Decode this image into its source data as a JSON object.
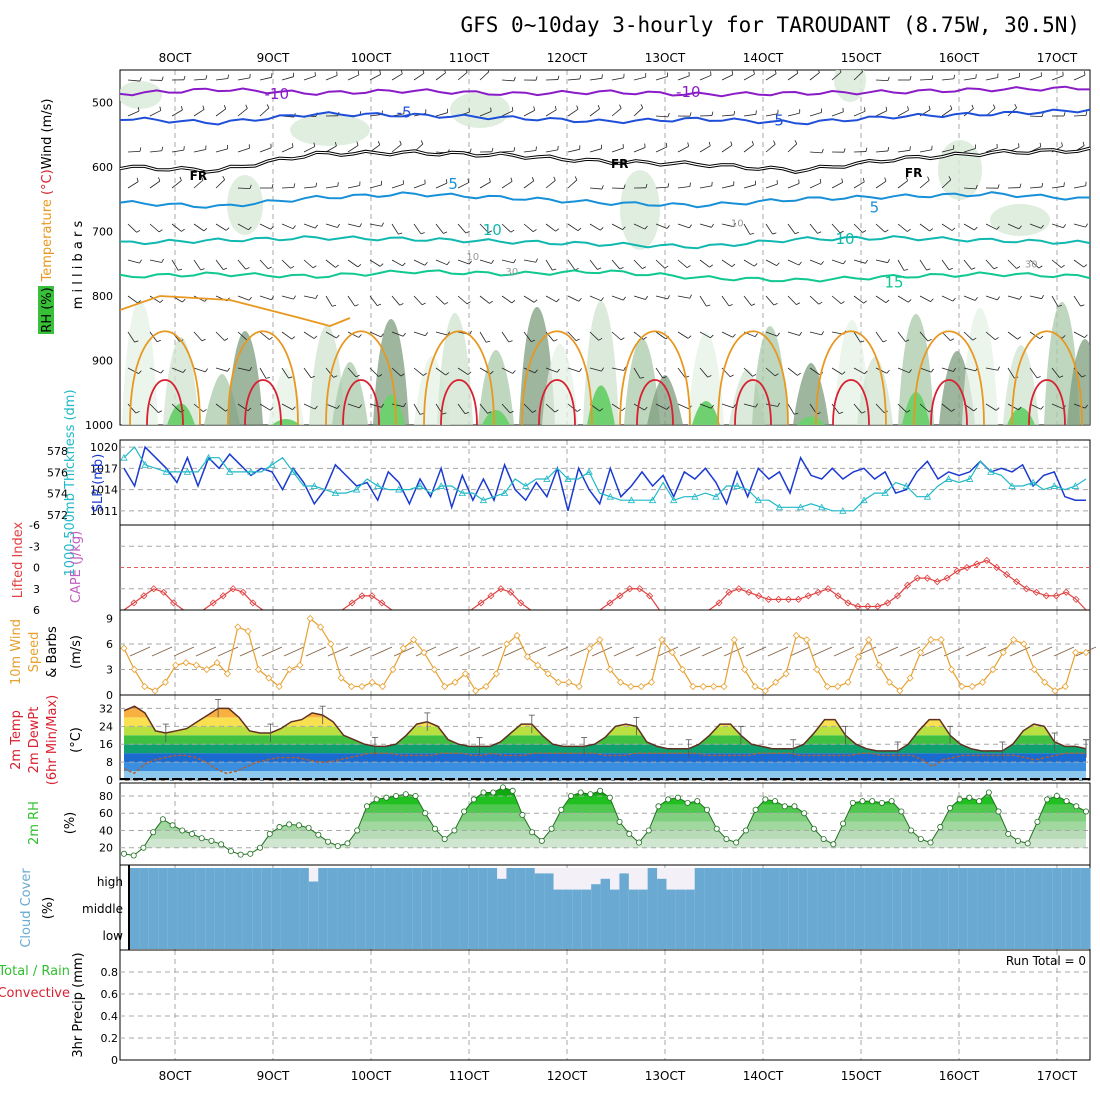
{
  "title": "GFS 0~10day 3-hourly for TAROUDANT (8.75W, 30.5N)",
  "colors": {
    "purple": "#8a1cc8",
    "blue": "#1f4fd8",
    "black": "#000000",
    "lightblue": "#1890d8",
    "teal": "#10b8b0",
    "green": "#10c890",
    "orange": "#e89820",
    "red": "#d82030",
    "slp": "#1a3ad0",
    "thickness": "#20b8c8",
    "cape": "#e04040",
    "wind": "#e8a030",
    "barb": "#806040",
    "rh": "#30c030",
    "cloud": "#6aaad2",
    "cloudClear": "#f4f0f8"
  },
  "chart_data": [
    {
      "name": "Upper air cross-section",
      "type": "line",
      "x_ticks": [
        "8OCT",
        "9OCT",
        "10OCT",
        "11OCT",
        "12OCT",
        "13OCT",
        "14OCT",
        "15OCT",
        "16OCT",
        "17OCT"
      ],
      "xlim": [
        -6,
        93
      ],
      "ylim": [
        1000,
        450
      ],
      "y_ticks": [
        500,
        600,
        700,
        800,
        900,
        1000
      ],
      "ylabel": "m i l l i b a r s",
      "legend_labels": {
        "rh": "RH (%)",
        "temp": "Temperature (°C)",
        "wind": "Wind (m/s)"
      },
      "isotherms": [
        {
          "value": -10,
          "color": "purple",
          "values": [
            487,
            480,
            486,
            482,
            487,
            484,
            488,
            486,
            484,
            480,
            478
          ]
        },
        {
          "value": -5,
          "color": "blue",
          "values": [
            525,
            532,
            518,
            520,
            524,
            530,
            526,
            532,
            522,
            518,
            512
          ]
        },
        {
          "value": 0,
          "color": "black",
          "values": [
            600,
            606,
            580,
            578,
            582,
            592,
            596,
            606,
            588,
            578,
            574
          ]
        },
        {
          "value": 5,
          "color": "lightblue",
          "values": [
            655,
            662,
            648,
            642,
            648,
            656,
            660,
            650,
            646,
            642,
            650
          ]
        },
        {
          "value": 10,
          "color": "teal",
          "values": [
            718,
            714,
            710,
            712,
            716,
            720,
            724,
            712,
            710,
            714,
            718
          ]
        },
        {
          "value": 15,
          "color": "green",
          "values": [
            770,
            766,
            770,
            762,
            766,
            762,
            772,
            776,
            770,
            766,
            770
          ]
        }
      ],
      "contour_labels": [
        {
          "text": "-10",
          "x": 10,
          "p": 487,
          "color": "purple"
        },
        {
          "text": "-5",
          "x": 23,
          "p": 516,
          "color": "blue"
        },
        {
          "text": "FR",
          "x": 2,
          "p": 613,
          "color": "black"
        },
        {
          "text": "FR",
          "x": 45,
          "p": 594,
          "color": "black"
        },
        {
          "text": "5",
          "x": 28,
          "p": 627,
          "color": "lightblue"
        },
        {
          "text": "10",
          "x": 32,
          "p": 698,
          "color": "teal"
        },
        {
          "text": "-10",
          "x": 52,
          "p": 484,
          "color": "purple"
        },
        {
          "text": "-5",
          "x": 61,
          "p": 528,
          "color": "blue"
        },
        {
          "text": "FR",
          "x": 75,
          "p": 608,
          "color": "black"
        },
        {
          "text": "5",
          "x": 71,
          "p": 663,
          "color": "lightblue"
        },
        {
          "text": "10",
          "x": 68,
          "p": 712,
          "color": "teal"
        },
        {
          "text": "15",
          "x": 73,
          "p": 779,
          "color": "green"
        },
        {
          "text": "10",
          "x": 57,
          "p": 685,
          "color": "gray"
        },
        {
          "text": "10",
          "x": 30,
          "p": 737,
          "color": "gray"
        },
        {
          "text": "30",
          "x": 34,
          "p": 760,
          "color": "gray"
        },
        {
          "text": "30",
          "x": 87,
          "p": 748,
          "color": "gray"
        }
      ]
    },
    {
      "name": "Sea level pressure and thickness",
      "type": "line",
      "ylabel_left": "1000-500mb Thickness (dm)",
      "ylabel_right": "SLP (mb)",
      "left_ticks": [
        578,
        576,
        574,
        572
      ],
      "right_ticks": [
        1020,
        1017,
        1014,
        1011
      ],
      "ylim": [
        1009,
        1021
      ],
      "slp": [
        1017,
        1014.5,
        1020,
        1018.5,
        1017,
        1015,
        1018.5,
        1014.5,
        1018.5,
        1017,
        1019,
        1017.5,
        1016,
        1017,
        1016.5,
        1014,
        1017,
        1015,
        1012,
        1014,
        1017.5,
        1016,
        1014.5,
        1015,
        1012.5,
        1016.5,
        1015,
        1012,
        1015.5,
        1013,
        1017,
        1011.5,
        1016,
        1012.5,
        1015.5,
        1012.5,
        1017.5,
        1014,
        1012.5,
        1015,
        1013,
        1017,
        1011,
        1017,
        1014,
        1012,
        1017,
        1013,
        1014.5,
        1016.5,
        1014.5,
        1016,
        1013,
        1016.5,
        1015.5,
        1017,
        1015,
        1012,
        1016.5,
        1013,
        1017,
        1015.5,
        1016.5,
        1013.5,
        1018.5,
        1016,
        1015.5,
        1017,
        1015.5,
        1016.5,
        1017,
        1015.5,
        1016.5,
        1013.5,
        1014,
        1016.5,
        1018,
        1015.5,
        1016.5,
        1016,
        1016.5,
        1018,
        1016.5,
        1017,
        1016.5,
        1017.5,
        1014.5,
        1016,
        1016.5,
        1013,
        1012.5,
        1012.5
      ],
      "thickness": [
        1018.5,
        1020,
        1017.5,
        1017,
        1016.5,
        1016.5,
        1016.5,
        1016.5,
        1018.5,
        1018.5,
        1016.5,
        1016.5,
        1016.5,
        1016.5,
        1017.5,
        1018.5,
        1016.5,
        1014.5,
        1014.5,
        1014,
        1013.5,
        1013.5,
        1014,
        1015.5,
        1014.5,
        1014,
        1014,
        1014,
        1014.5,
        1013.5,
        1014.5,
        1014.5,
        1013.5,
        1013.5,
        1012.5,
        1013,
        1013.5,
        1015.5,
        1014.5,
        1015.5,
        1015.5,
        1017,
        1015.5,
        1015.5,
        1016.5,
        1013.5,
        1013,
        1012.5,
        1012.5,
        1012.5,
        1012.5,
        1015,
        1012.5,
        1013,
        1013,
        1013.5,
        1013,
        1014.5,
        1014.5,
        1014,
        1012.5,
        1012.5,
        1011.5,
        1011.5,
        1011.5,
        1012,
        1011.5,
        1011,
        1011,
        1011,
        1012.5,
        1013.5,
        1013.5,
        1015,
        1014.5,
        1013,
        1013,
        1014.5,
        1015.5,
        1015,
        1015.5,
        1018,
        1016.5,
        1016,
        1014.5,
        1014.5,
        1015,
        1014,
        1014.5,
        1014,
        1014.5,
        1015.5
      ]
    },
    {
      "name": "CAPE / Lifted Index",
      "type": "line",
      "ylabel_left": "Lifted Index",
      "ylabel_right": "CAPE (J/kg)",
      "y_ticks": [
        "-6",
        "-3",
        "0",
        "3",
        "6"
      ],
      "ylim": [
        -6,
        6
      ],
      "zero_line": 0,
      "lifted_index": [
        6,
        5,
        4,
        3,
        3.5,
        5,
        6,
        6,
        6,
        5,
        4,
        3,
        3.5,
        5,
        6,
        6,
        6,
        6,
        6,
        6,
        6,
        6,
        6,
        5,
        4,
        4,
        5,
        6,
        6,
        6,
        6,
        6,
        6,
        6,
        6,
        6,
        5,
        4,
        3,
        3.5,
        5,
        6,
        6,
        6,
        6,
        6,
        6,
        6,
        6,
        5,
        4,
        3,
        3,
        4,
        6,
        6,
        6,
        6,
        6,
        6,
        5,
        3.5,
        3,
        3.5,
        4,
        4.5,
        4.5,
        4.5,
        4.5,
        4,
        3.5,
        3,
        4,
        5,
        5.5,
        5.5,
        5.5,
        5,
        4,
        2.5,
        1.5,
        1.5,
        2,
        1.5,
        0.5,
        0,
        -0.5,
        -1,
        0,
        1,
        2,
        3,
        3.5,
        4,
        4,
        3.5,
        4.5,
        6
      ]
    },
    {
      "name": "10m Wind Speed & Barbs",
      "type": "line",
      "ylabel": "10m Wind Speed & Barbs",
      "yunits": "(m/s)",
      "y_ticks": [
        "0",
        "3",
        "6",
        "9"
      ],
      "ylim": [
        0,
        10
      ],
      "wind_speed": [
        5.5,
        3,
        1,
        0.5,
        1.5,
        3.5,
        3.8,
        3.5,
        3,
        3.8,
        2.5,
        8,
        7.5,
        3,
        2,
        1,
        3,
        3.5,
        9,
        8,
        6,
        2,
        1,
        1,
        1.5,
        1,
        3,
        5.5,
        6.5,
        5,
        3,
        1,
        1.5,
        2.5,
        0.5,
        1,
        2.5,
        6,
        7,
        4.5,
        3.5,
        2.5,
        1.5,
        1.5,
        1,
        5.5,
        6.5,
        3,
        1.5,
        1,
        1,
        1.5,
        6.5,
        5,
        3,
        1,
        1,
        1,
        1,
        6.5,
        3,
        1,
        0.5,
        1.5,
        2.5,
        7,
        6.5,
        3,
        1,
        1,
        1.5,
        4.5,
        6.5,
        3.5,
        1.5,
        0.5,
        2,
        5,
        6.5,
        6.5,
        3,
        1,
        1,
        1.5,
        3,
        5,
        6.5,
        6,
        3,
        1.5,
        0.5,
        1,
        5,
        5
      ]
    },
    {
      "name": "2m Temp, 2m DewPt, 6hr Min/Max",
      "type": "area",
      "ylabel": "2m Temp 2m DewPt (6hr Min/Max)",
      "yunits": "(°C)",
      "y_ticks": [
        0,
        8,
        16,
        24,
        32
      ],
      "ylim": [
        0,
        38
      ],
      "temp": [
        31,
        33,
        30,
        22,
        21,
        22,
        23,
        26,
        29,
        32,
        32,
        28,
        22,
        21,
        21,
        23,
        26,
        27,
        30,
        29,
        26,
        20,
        18,
        16,
        15,
        15,
        16,
        20,
        25,
        26,
        24,
        18,
        16,
        15,
        15,
        15,
        17,
        21,
        25,
        25,
        20,
        16,
        15,
        15,
        15,
        16,
        19,
        24,
        25,
        24,
        17,
        15,
        14,
        14,
        14,
        16,
        20,
        25,
        25,
        20,
        16,
        15,
        14,
        14,
        14,
        16,
        21,
        27,
        27,
        20,
        16,
        14,
        13,
        13,
        13,
        16,
        22,
        27,
        27,
        20,
        16,
        14,
        13,
        13,
        13,
        16,
        22,
        25,
        24,
        17,
        15,
        15,
        14
      ],
      "dewpoint": [
        5,
        3,
        7,
        9,
        10,
        11,
        11,
        10,
        8,
        5,
        3,
        4,
        6,
        8,
        9,
        10,
        10,
        10,
        9,
        8,
        8,
        9,
        10,
        11,
        12,
        12,
        12,
        11,
        11,
        11,
        11,
        12,
        12,
        12,
        11,
        11,
        12,
        11,
        11,
        11,
        12,
        12,
        12,
        12,
        12,
        12,
        12,
        11,
        11,
        11,
        12,
        12,
        12,
        12,
        12,
        12,
        12,
        11,
        11,
        11,
        11,
        11,
        12,
        12,
        12,
        12,
        11,
        11,
        11,
        11,
        11,
        11,
        12,
        12,
        11,
        11,
        11,
        11,
        9,
        6,
        9,
        10,
        11,
        11,
        11,
        11,
        11,
        11,
        10,
        9,
        10,
        11,
        12,
        12,
        12
      ]
    },
    {
      "name": "2m RH",
      "type": "area",
      "ylabel": "2m RH",
      "yunits": "(%)",
      "y_ticks": [
        20,
        40,
        60,
        80
      ],
      "ylim": [
        0,
        95
      ],
      "rh": [
        13,
        11,
        20,
        38,
        53,
        46,
        40,
        36,
        31,
        28,
        24,
        16,
        12,
        13,
        20,
        36,
        44,
        47,
        46,
        43,
        35,
        27,
        22,
        25,
        40,
        68,
        76,
        78,
        80,
        82,
        80,
        60,
        42,
        30,
        40,
        62,
        76,
        84,
        84,
        90,
        86,
        58,
        38,
        28,
        42,
        64,
        80,
        84,
        82,
        86,
        78,
        50,
        36,
        26,
        40,
        68,
        76,
        78,
        72,
        74,
        64,
        42,
        30,
        26,
        40,
        64,
        76,
        74,
        68,
        68,
        60,
        42,
        30,
        24,
        48,
        72,
        74,
        74,
        72,
        74,
        62,
        40,
        30,
        26,
        44,
        66,
        76,
        78,
        74,
        84,
        62,
        36,
        28,
        25,
        50,
        76,
        80,
        74,
        68,
        62
      ]
    },
    {
      "name": "Cloud Cover",
      "type": "bar",
      "ylabel": "Cloud Cover",
      "yunits": "(%)",
      "y_ticks": [
        "high",
        "middle",
        "low"
      ],
      "high_cover": [
        100,
        100,
        100,
        100,
        100,
        100,
        100,
        100,
        100,
        100,
        100,
        100,
        100,
        100,
        100,
        100,
        100,
        100,
        100,
        50,
        100,
        100,
        100,
        100,
        100,
        100,
        100,
        100,
        100,
        100,
        100,
        100,
        100,
        100,
        100,
        100,
        100,
        100,
        100,
        60,
        100,
        100,
        100,
        80,
        80,
        20,
        20,
        20,
        20,
        40,
        60,
        20,
        80,
        20,
        20,
        100,
        60,
        20,
        20,
        20,
        100,
        100,
        100,
        100,
        100,
        100,
        100,
        100,
        100,
        100,
        100,
        100,
        100,
        100,
        100,
        100,
        100,
        100,
        100,
        100,
        100,
        100,
        100,
        100,
        100,
        100,
        100,
        100,
        100,
        100,
        100,
        100,
        100,
        100,
        100,
        100,
        100,
        100,
        100,
        100,
        100,
        100
      ],
      "middle_cover": [
        100,
        100,
        100,
        100,
        100,
        100,
        100,
        100,
        100,
        100,
        100,
        100,
        100,
        100,
        100,
        100,
        100,
        100,
        100,
        100,
        100,
        100,
        100,
        100,
        100,
        100,
        100,
        100,
        100,
        100,
        100,
        100,
        100,
        100,
        100,
        100,
        100,
        100,
        100,
        100,
        100,
        100,
        100,
        100,
        100,
        100,
        100,
        100,
        100,
        100,
        100,
        100,
        100,
        100,
        100,
        100,
        100,
        100,
        100,
        100,
        100,
        100,
        100,
        100,
        100,
        100,
        100,
        100,
        100,
        100,
        100,
        100,
        100,
        100,
        100,
        100,
        100,
        100,
        100,
        100,
        100,
        100,
        100,
        100,
        100,
        100,
        100,
        100,
        100,
        100,
        100,
        100,
        100,
        100,
        100,
        100,
        100,
        100,
        100,
        100,
        100,
        100
      ],
      "low_cover": [
        100,
        100,
        100,
        100,
        100,
        100,
        100,
        100,
        100,
        100,
        100,
        100,
        100,
        100,
        100,
        100,
        100,
        100,
        100,
        100,
        100,
        100,
        100,
        100,
        100,
        100,
        100,
        100,
        100,
        100,
        100,
        100,
        100,
        100,
        100,
        100,
        100,
        100,
        100,
        100,
        100,
        100,
        100,
        100,
        100,
        100,
        100,
        100,
        100,
        100,
        100,
        100,
        100,
        100,
        100,
        100,
        100,
        100,
        100,
        100,
        100,
        100,
        100,
        100,
        100,
        100,
        100,
        100,
        100,
        100,
        100,
        100,
        100,
        100,
        100,
        100,
        100,
        100,
        100,
        100,
        100,
        100,
        100,
        100,
        100,
        100,
        100,
        100,
        100,
        100,
        100,
        100,
        100,
        100,
        100,
        100,
        100,
        100,
        100,
        100,
        100,
        100
      ]
    },
    {
      "name": "3hr Precip",
      "type": "bar",
      "ylabel_left": "Total / Rain",
      "ylabel_left2": "Convective",
      "ylabel": "3hr Precip (mm)",
      "y_ticks": [
        "0",
        "0.2",
        "0.4",
        "0.6",
        "0.8"
      ],
      "ylim": [
        0,
        1
      ],
      "run_total": "Run Total = 0",
      "values": []
    }
  ]
}
